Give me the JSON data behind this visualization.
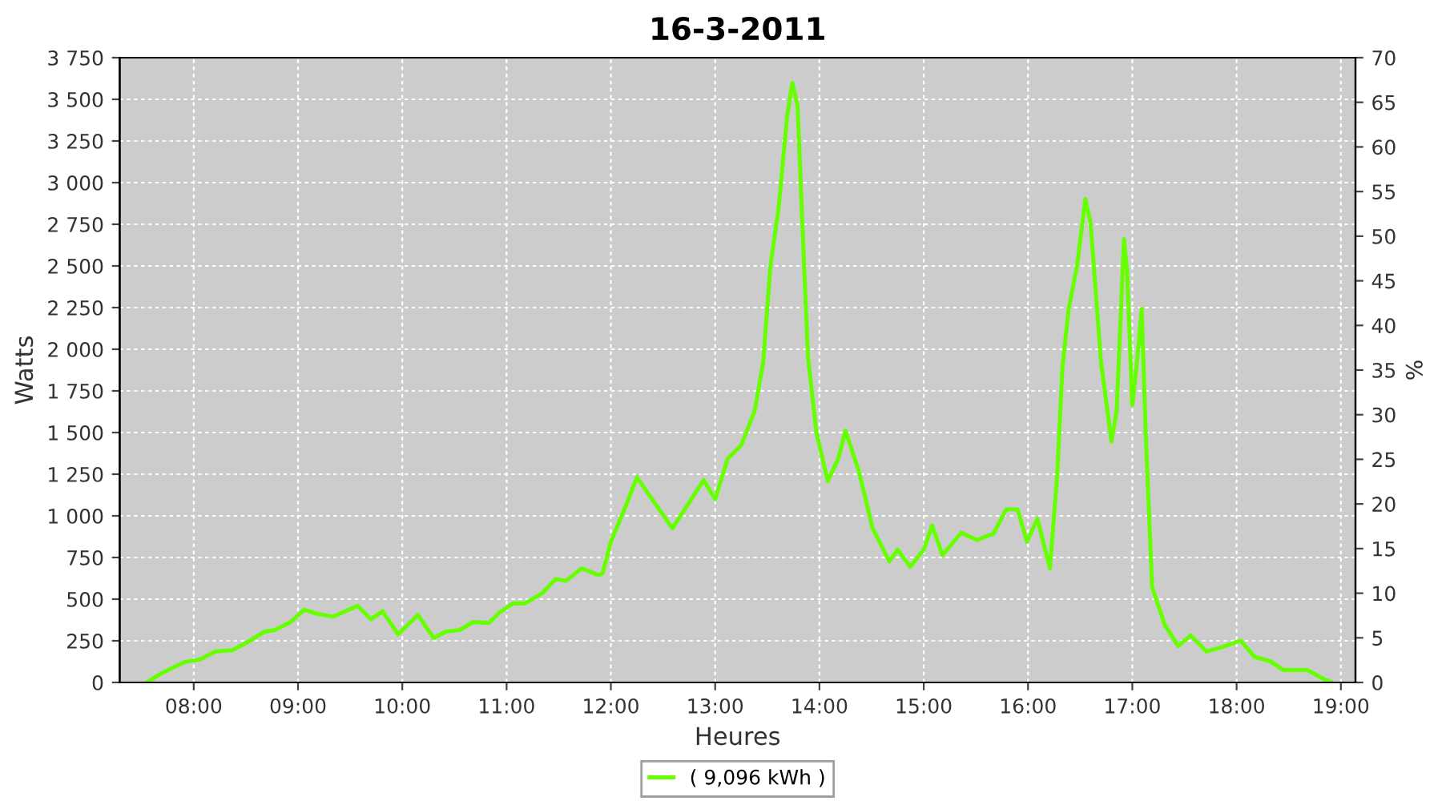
{
  "chart_data": {
    "type": "line",
    "title": "16-3-2011",
    "xlabel": "Heures",
    "ylabel": "Watts",
    "y2label": "%",
    "xlim": [
      7.29,
      19.14
    ],
    "xticks": [
      {
        "value": 8,
        "label": "08:00"
      },
      {
        "value": 9,
        "label": "09:00"
      },
      {
        "value": 10,
        "label": "10:00"
      },
      {
        "value": 11,
        "label": "11:00"
      },
      {
        "value": 12,
        "label": "12:00"
      },
      {
        "value": 13,
        "label": "13:00"
      },
      {
        "value": 14,
        "label": "14:00"
      },
      {
        "value": 15,
        "label": "15:00"
      },
      {
        "value": 16,
        "label": "16:00"
      },
      {
        "value": 17,
        "label": "17:00"
      },
      {
        "value": 18,
        "label": "18:00"
      },
      {
        "value": 19,
        "label": "19:00"
      }
    ],
    "ylim": [
      0,
      3750
    ],
    "yticks": [
      0,
      {
        "value": 250,
        "label": "250"
      },
      {
        "value": 500,
        "label": "500"
      },
      {
        "value": 750,
        "label": "750"
      },
      {
        "value": 1000,
        "label": "1 000"
      },
      {
        "value": 1250,
        "label": "1 250"
      },
      {
        "value": 1500,
        "label": "1 500"
      },
      {
        "value": 1750,
        "label": "1 750"
      },
      {
        "value": 2000,
        "label": "2 000"
      },
      {
        "value": 2250,
        "label": "2 250"
      },
      {
        "value": 2500,
        "label": "2 500"
      },
      {
        "value": 2750,
        "label": "2 750"
      },
      {
        "value": 3000,
        "label": "3 000"
      },
      {
        "value": 3250,
        "label": "3 250"
      },
      {
        "value": 3500,
        "label": "3 500"
      },
      {
        "value": 3750,
        "label": "3 750"
      }
    ],
    "y2lim": [
      0,
      70
    ],
    "y2ticks": [
      0,
      5,
      10,
      15,
      20,
      25,
      30,
      35,
      40,
      45,
      50,
      55,
      60,
      65,
      70
    ],
    "grid": true,
    "legend": "bottom",
    "marker": "none",
    "line_style": "solid",
    "series": [
      {
        "name": "( 9,096 kWh )",
        "color": "#66ff00",
        "x": [
          7.55,
          7.7,
          7.91,
          8.06,
          8.21,
          8.37,
          8.52,
          8.68,
          8.78,
          8.93,
          9.06,
          9.19,
          9.34,
          9.57,
          9.7,
          9.81,
          9.96,
          10.15,
          10.3,
          10.42,
          10.55,
          10.68,
          10.83,
          10.93,
          11.06,
          11.18,
          11.34,
          11.47,
          11.57,
          11.72,
          11.88,
          11.92,
          12.0,
          12.15,
          12.25,
          12.59,
          12.89,
          13.0,
          13.12,
          13.25,
          13.38,
          13.46,
          13.53,
          13.61,
          13.69,
          13.74,
          13.79,
          13.84,
          13.89,
          13.97,
          14.08,
          14.18,
          14.25,
          14.38,
          14.51,
          14.67,
          14.75,
          14.87,
          15.0,
          15.08,
          15.18,
          15.36,
          15.51,
          15.67,
          15.79,
          15.9,
          15.99,
          16.09,
          16.21,
          16.28,
          16.33,
          16.39,
          16.47,
          16.55,
          16.6,
          16.7,
          16.8,
          16.85,
          16.92,
          16.95,
          17.0,
          17.05,
          17.09,
          17.13,
          17.19,
          17.31,
          17.44,
          17.56,
          17.71,
          17.86,
          18.04,
          18.17,
          18.32,
          18.45,
          18.68,
          18.84,
          18.91
        ],
        "values": [
          0,
          58,
          122,
          138,
          186,
          193,
          244,
          305,
          315,
          363,
          437,
          411,
          395,
          460,
          379,
          427,
          289,
          405,
          267,
          305,
          315,
          363,
          357,
          418,
          475,
          475,
          535,
          620,
          610,
          685,
          645,
          653,
          845,
          1070,
          1231,
          925,
          1215,
          1100,
          1343,
          1424,
          1632,
          1921,
          2500,
          2854,
          3400,
          3599,
          3464,
          2693,
          1954,
          1504,
          1208,
          1343,
          1511,
          1263,
          925,
          726,
          797,
          694,
          797,
          942,
          765,
          899,
          855,
          894,
          1038,
          1038,
          845,
          983,
          684,
          1246,
          1890,
          2243,
          2500,
          2902,
          2757,
          1921,
          1446,
          1632,
          2661,
          2468,
          1665,
          1954,
          2243,
          1472,
          572,
          347,
          219,
          282,
          186,
          212,
          251,
          154,
          128,
          74,
          74,
          19,
          3
        ]
      }
    ]
  }
}
